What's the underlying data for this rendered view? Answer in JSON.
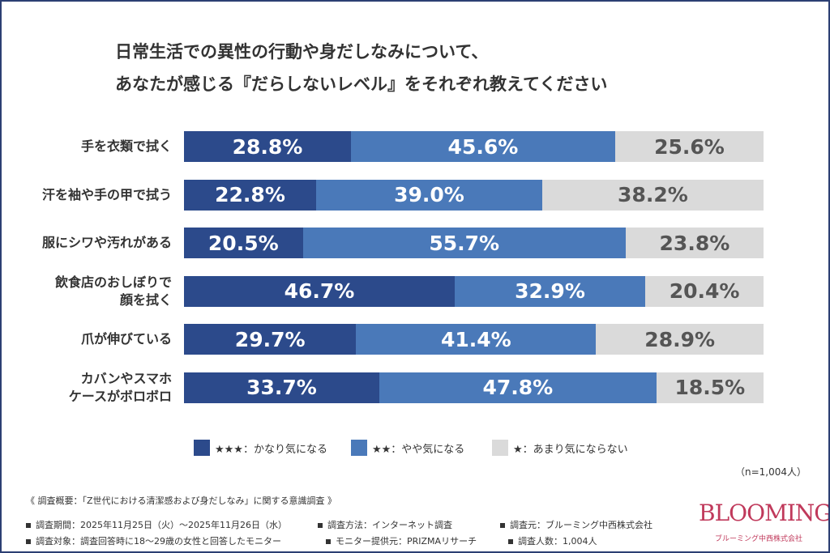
{
  "chart_data": {
    "type": "stacked-bar-horizontal",
    "title": "日常生活での異性の行動や身だしなみについて、\nあなたが感じる『だらしないレベル』をそれぞれ教えてください",
    "categories": [
      "手を衣類で拭く",
      "汗を袖や手の甲で拭う",
      "服にシワや汚れがある",
      "飲食店のおしぼりで\n顔を拭く",
      "爪が伸びている",
      "カバンやスマホ\nケースがボロボロ"
    ],
    "xlim": [
      0,
      100
    ],
    "series": [
      {
        "name": "★★★：かなり気になる",
        "color": "#2c4a8b",
        "values": [
          28.8,
          22.8,
          20.5,
          46.7,
          29.7,
          33.7
        ],
        "value_labels": [
          "28.8%",
          "22.8%",
          "20.5%",
          "46.7%",
          "29.7%",
          "33.7%"
        ]
      },
      {
        "name": "★★：やや気になる",
        "color": "#4a79b9",
        "values": [
          45.6,
          39.0,
          55.7,
          32.9,
          41.4,
          47.8
        ],
        "value_labels": [
          "45.6%",
          "39.0%",
          "55.7%",
          "32.9%",
          "41.4%",
          "47.8%"
        ]
      },
      {
        "name": "★：あまり気にならない",
        "color": "#dadada",
        "values": [
          25.6,
          38.2,
          23.8,
          20.4,
          28.9,
          18.5
        ],
        "value_labels": [
          "25.6%",
          "38.2%",
          "23.8%",
          "20.4%",
          "28.9%",
          "18.5%"
        ]
      }
    ],
    "note": "（n=1,004人）"
  },
  "footer": {
    "heading": "《 調査概要：「Z世代における清潔感および身だしなみ」に関する意識調査 》",
    "items": [
      "調査期間：2025年11月25日（火）～2025年11月26日（水）",
      "調査方法：インターネット調査",
      "調査元：ブルーミング中西株式会社",
      "調査対象：調査回答時に18～29歳の女性と回答したモニター",
      "モニター提供元：PRIZMAリサーチ",
      "調査人数：1,004人"
    ],
    "brand": "BLOOMING",
    "brand_sub": "ブルーミング中西株式会社"
  }
}
